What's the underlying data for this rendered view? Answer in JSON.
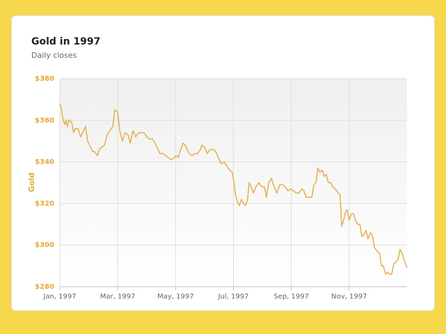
{
  "chart_data": {
    "type": "line",
    "title": "Gold in 1997",
    "subtitle": "Daily closes",
    "y_label": "Gold",
    "color": "#e2b356",
    "grid": true,
    "x": [
      0,
      0.05,
      0.1,
      0.17,
      0.22,
      0.26,
      0.31,
      0.41,
      0.48,
      0.53,
      0.63,
      0.72,
      0.82,
      0.89,
      0.96,
      1.03,
      1.13,
      1.2,
      1.3,
      1.37,
      1.44,
      1.54,
      1.64,
      1.73,
      1.83,
      1.9,
      2.0,
      2.07,
      2.16,
      2.26,
      2.36,
      2.43,
      2.53,
      2.62,
      2.72,
      2.81,
      2.91,
      3.01,
      3.1,
      3.2,
      3.29,
      3.39,
      3.46,
      3.56,
      3.66,
      3.75,
      3.85,
      3.94,
      4.02,
      4.09,
      4.18,
      4.26,
      4.33,
      4.4,
      4.47,
      4.57,
      4.67,
      4.76,
      4.86,
      4.91,
      5.0,
      5.1,
      5.19,
      5.29,
      5.39,
      5.48,
      5.58,
      5.68,
      5.77,
      5.87,
      5.96,
      6.01,
      6.06,
      6.13,
      6.2,
      6.28,
      6.35,
      6.42,
      6.49,
      6.54,
      6.61,
      6.69,
      6.78,
      6.88,
      6.97,
      7.07,
      7.14,
      7.22,
      7.31,
      7.41,
      7.5,
      7.6,
      7.7,
      7.79,
      7.89,
      7.98,
      8.08,
      8.18,
      8.27,
      8.37,
      8.44,
      8.51,
      8.61,
      8.71,
      8.78,
      8.85,
      8.92,
      8.99,
      9.07,
      9.14,
      9.21,
      9.28,
      9.36,
      9.43,
      9.52,
      9.62,
      9.69,
      9.74,
      9.81,
      9.88,
      9.93,
      10.0,
      10.08,
      10.15,
      10.22,
      10.29,
      10.37,
      10.44,
      10.51,
      10.58,
      10.65,
      10.73,
      10.8,
      10.87,
      10.97,
      11.06,
      11.11,
      11.18,
      11.26,
      11.33,
      11.4,
      11.47,
      11.54,
      11.62,
      11.69,
      11.76,
      11.83,
      11.9,
      12.0
    ],
    "values": [
      368,
      366,
      361,
      358,
      360,
      357,
      360,
      359,
      354,
      356,
      356,
      352,
      355,
      357,
      350,
      348,
      345,
      345,
      343,
      346,
      347,
      348,
      353,
      355,
      357,
      365,
      364,
      355,
      350,
      354,
      353,
      349,
      355,
      352,
      354,
      354,
      354,
      352,
      351,
      351,
      349,
      346,
      344,
      344,
      343,
      342,
      341,
      342,
      343,
      342,
      346,
      349,
      348,
      346,
      344,
      343,
      344,
      344,
      346,
      348,
      347,
      344,
      346,
      346,
      345,
      342,
      339,
      340,
      338,
      336,
      335,
      331,
      325,
      321,
      319,
      322,
      320,
      319,
      322,
      330,
      328,
      325,
      328,
      330,
      328,
      328,
      323,
      330,
      332,
      328,
      325,
      329,
      329,
      328,
      326,
      327,
      326,
      325,
      325,
      327,
      326,
      323,
      323,
      323,
      329,
      330,
      337,
      335,
      336,
      333,
      334,
      330,
      330,
      328,
      327,
      325,
      324,
      309,
      312,
      316,
      317,
      312,
      315,
      315,
      312,
      310,
      310,
      304,
      305,
      307,
      303,
      306,
      305,
      299,
      297,
      296,
      290,
      290,
      286,
      287,
      286,
      286,
      291,
      292,
      293,
      298,
      296,
      293,
      289
    ],
    "xlim": [
      0,
      12
    ],
    "xticks": [
      {
        "value": 0,
        "label": "Jan, 1997"
      },
      {
        "value": 2,
        "label": "Mar, 1997"
      },
      {
        "value": 4,
        "label": "May, 1997"
      },
      {
        "value": 6,
        "label": "Jul, 1997"
      },
      {
        "value": 8,
        "label": "Sep, 1997"
      },
      {
        "value": 10,
        "label": "Nov, 1997"
      }
    ],
    "ylim": [
      280,
      380
    ],
    "yticks": [
      {
        "value": 280,
        "label": "$280"
      },
      {
        "value": 300,
        "label": "$300"
      },
      {
        "value": 320,
        "label": "$320"
      },
      {
        "value": 340,
        "label": "$340"
      },
      {
        "value": 360,
        "label": "$360"
      },
      {
        "value": 380,
        "label": "$380"
      }
    ]
  }
}
